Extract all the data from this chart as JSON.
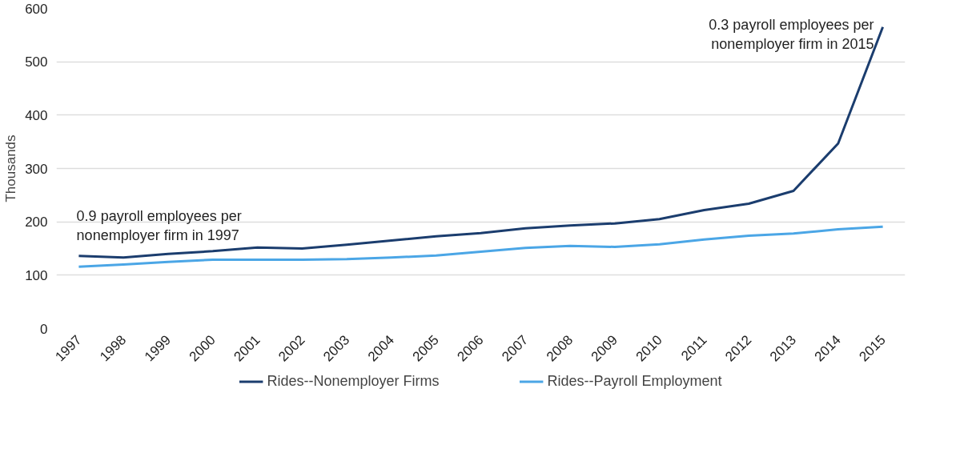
{
  "chart_data": {
    "type": "line",
    "ylabel": "Thousands",
    "categories": [
      "1997",
      "1998",
      "1999",
      "2000",
      "2001",
      "2002",
      "2003",
      "2004",
      "2005",
      "2006",
      "2007",
      "2008",
      "2009",
      "2010",
      "2011",
      "2012",
      "2013",
      "2014",
      "2015"
    ],
    "series": [
      {
        "name": "Rides--Nonemployer Firms",
        "color": "#1b3d6e",
        "values": [
          136,
          133,
          140,
          145,
          152,
          150,
          157,
          165,
          173,
          179,
          188,
          193,
          197,
          205,
          222,
          234,
          258,
          347,
          565
        ]
      },
      {
        "name": "Rides--Payroll Employment",
        "color": "#4ba6e6",
        "values": [
          116,
          120,
          125,
          129,
          129,
          129,
          130,
          133,
          137,
          144,
          151,
          155,
          153,
          158,
          167,
          174,
          178,
          186,
          191
        ]
      }
    ],
    "ylim": [
      0,
      600
    ],
    "yticks": [
      0,
      100,
      200,
      300,
      400,
      500,
      600
    ],
    "grid": "y",
    "legend": "bottom",
    "line_style": "solid",
    "marker": "none",
    "annotations": [
      {
        "text": "0.9 payroll employees per\nnonemployer firm in 1997",
        "x": "1997",
        "y": 136
      },
      {
        "text": "0.3 payroll employees per\nnonemployer firm in 2015",
        "x": "2015",
        "y": 565
      }
    ]
  }
}
